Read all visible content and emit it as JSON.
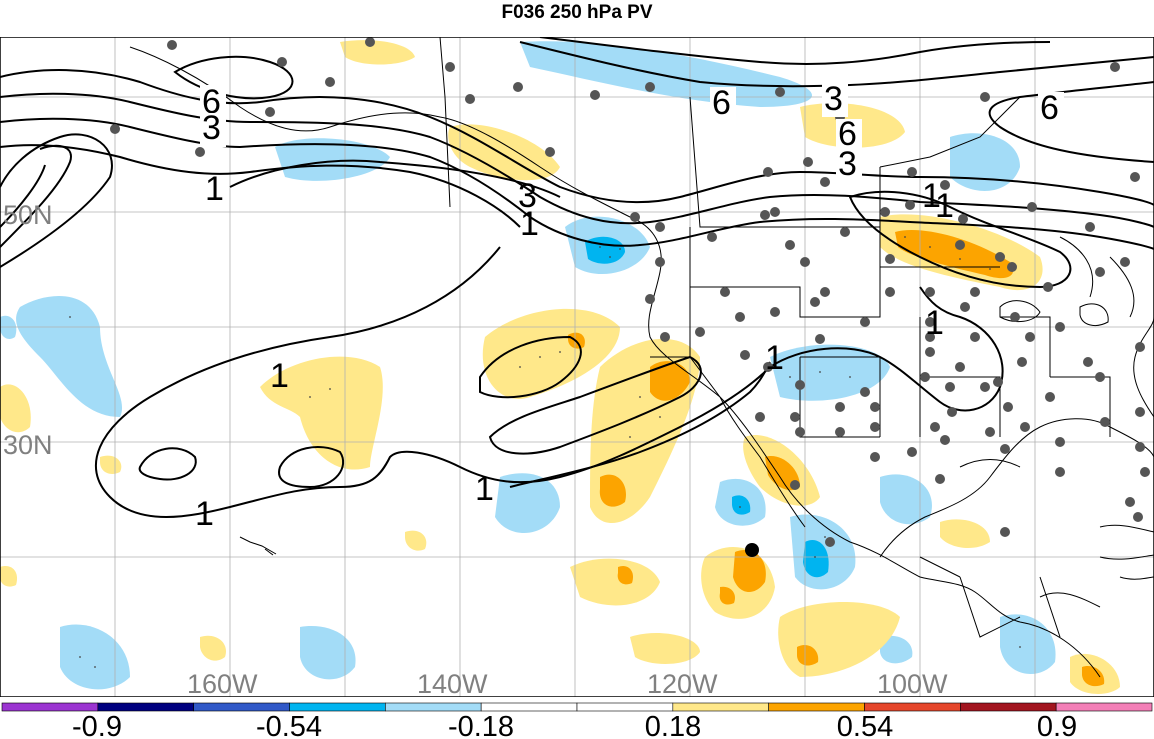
{
  "title": "F036 250 hPa PV",
  "longitude_labels": [
    "160W",
    "140W",
    "120W",
    "100W"
  ],
  "latitude_labels": [
    "50N",
    "30N"
  ],
  "contour_labels": [
    "6",
    "3",
    "1",
    "6",
    "3",
    "6",
    "6",
    "3",
    "3",
    "1",
    "1",
    "1",
    "1",
    "1",
    "1",
    "1",
    "1"
  ],
  "colorbar": {
    "labels": [
      "-0.9",
      "-0.54",
      "-0.18",
      "0.18",
      "0.54",
      "0.9"
    ],
    "colors": [
      "#9b34d1",
      "#00007f",
      "#3159c8",
      "#00b4f0",
      "#a3dcf7",
      "#ffffff",
      "#ffffff",
      "#ffe88a",
      "#fca400",
      "#e5462b",
      "#a2151f",
      "#f37fb7"
    ]
  },
  "colors": {
    "negative_light": "#a3dcf7",
    "negative_mid": "#00b4f0",
    "positive_light": "#ffe88a",
    "positive_mid": "#fca400",
    "station_dot": "#555555",
    "grid": "#b0b0b0"
  }
}
